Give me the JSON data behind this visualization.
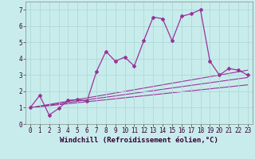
{
  "xlabel": "Windchill (Refroidissement éolien,°C)",
  "bg_color": "#c8ecec",
  "grid_color": "#b0d8d8",
  "line_color": "#993399",
  "xlim": [
    -0.5,
    23.5
  ],
  "ylim": [
    0,
    7.5
  ],
  "xticks": [
    0,
    1,
    2,
    3,
    4,
    5,
    6,
    7,
    8,
    9,
    10,
    11,
    12,
    13,
    14,
    15,
    16,
    17,
    18,
    19,
    20,
    21,
    22,
    23
  ],
  "yticks": [
    0,
    1,
    2,
    3,
    4,
    5,
    6,
    7
  ],
  "series1_x": [
    0,
    1,
    2,
    3,
    4,
    5,
    6,
    7,
    8,
    9,
    10,
    11,
    12,
    13,
    14,
    15,
    16,
    17,
    18,
    19,
    20,
    21,
    22,
    23
  ],
  "series1_y": [
    1.0,
    1.75,
    0.55,
    0.95,
    1.45,
    1.5,
    1.4,
    3.2,
    4.45,
    3.85,
    4.1,
    3.55,
    5.1,
    6.55,
    6.45,
    5.1,
    6.6,
    6.75,
    7.0,
    3.85,
    3.0,
    3.4,
    3.3,
    3.0
  ],
  "series2_x": [
    0,
    23
  ],
  "series2_y": [
    1.0,
    3.3
  ],
  "series3_x": [
    0,
    23
  ],
  "series3_y": [
    1.0,
    2.85
  ],
  "series4_x": [
    0,
    23
  ],
  "series4_y": [
    1.0,
    2.4
  ],
  "tick_fontsize": 5.5,
  "xlabel_fontsize": 6.5
}
